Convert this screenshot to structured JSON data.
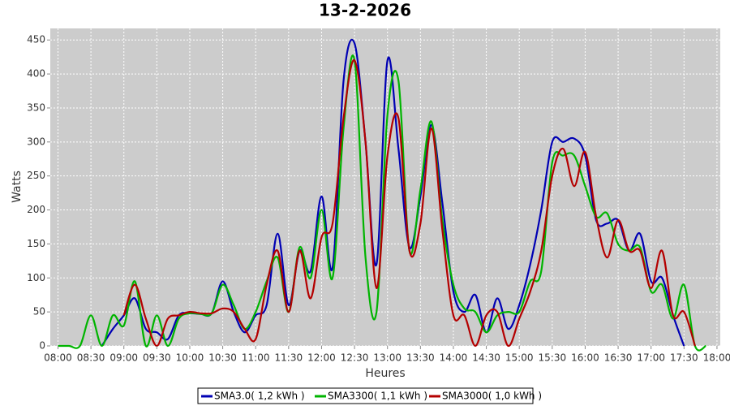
{
  "chart_data": {
    "type": "line",
    "title": "13-2-2026",
    "x_label": "Heures",
    "y_label": "Watts",
    "x": [
      "08:00",
      "08:10",
      "08:20",
      "08:30",
      "08:40",
      "08:50",
      "09:00",
      "09:10",
      "09:20",
      "09:30",
      "09:40",
      "09:50",
      "10:00",
      "10:10",
      "10:20",
      "10:30",
      "10:40",
      "10:50",
      "11:00",
      "11:10",
      "11:20",
      "11:30",
      "11:40",
      "11:50",
      "12:00",
      "12:10",
      "12:20",
      "12:30",
      "12:40",
      "12:50",
      "13:00",
      "13:10",
      "13:20",
      "13:30",
      "13:40",
      "13:50",
      "14:00",
      "14:10",
      "14:20",
      "14:30",
      "14:40",
      "14:50",
      "15:00",
      "15:10",
      "15:20",
      "15:30",
      "15:40",
      "15:50",
      "16:00",
      "16:10",
      "16:20",
      "16:30",
      "16:40",
      "16:50",
      "17:00",
      "17:10",
      "17:20",
      "17:30",
      "17:40",
      "17:50"
    ],
    "series": [
      {
        "name": "SMA3.0( 1,2 kWh )",
        "color": "#0000b4",
        "values": [
          null,
          null,
          null,
          null,
          0,
          25,
          45,
          70,
          25,
          20,
          10,
          45,
          48,
          47,
          48,
          95,
          50,
          20,
          45,
          60,
          165,
          60,
          140,
          110,
          220,
          115,
          390,
          445,
          300,
          120,
          420,
          290,
          145,
          220,
          325,
          210,
          80,
          50,
          75,
          20,
          70,
          25,
          60,
          120,
          200,
          300,
          300,
          305,
          280,
          185,
          180,
          185,
          140,
          165,
          95,
          100,
          45,
          0,
          null,
          null
        ]
      },
      {
        "name": "SMA3300( 1,1 kWh )",
        "color": "#00b400",
        "values": [
          0,
          0,
          0,
          45,
          0,
          45,
          30,
          95,
          0,
          45,
          0,
          40,
          48,
          47,
          48,
          90,
          60,
          25,
          50,
          95,
          130,
          50,
          145,
          100,
          200,
          100,
          320,
          420,
          130,
          50,
          340,
          390,
          140,
          230,
          330,
          185,
          90,
          55,
          50,
          20,
          45,
          50,
          50,
          95,
          110,
          270,
          280,
          280,
          235,
          190,
          195,
          150,
          140,
          145,
          80,
          90,
          40,
          90,
          0,
          0
        ]
      },
      {
        "name": "SMA3000( 1,0 kWh )",
        "color": "#b40000",
        "values": [
          null,
          null,
          null,
          null,
          null,
          null,
          45,
          90,
          40,
          0,
          40,
          45,
          50,
          48,
          48,
          55,
          50,
          25,
          10,
          90,
          140,
          50,
          140,
          70,
          160,
          180,
          335,
          420,
          300,
          85,
          280,
          335,
          140,
          180,
          320,
          170,
          45,
          45,
          0,
          45,
          50,
          0,
          40,
          80,
          140,
          250,
          290,
          235,
          285,
          190,
          130,
          185,
          140,
          140,
          85,
          140,
          45,
          50,
          0,
          null
        ]
      }
    ],
    "xlim": [
      "07:53",
      "18:03"
    ],
    "xticks": [
      "08:00",
      "08:30",
      "09:00",
      "09:30",
      "10:00",
      "10:30",
      "11:00",
      "11:30",
      "12:00",
      "12:30",
      "13:00",
      "13:30",
      "14:00",
      "14:30",
      "15:00",
      "15:30",
      "16:00",
      "16:30",
      "17:00",
      "17:30",
      "18:00"
    ],
    "ylim": [
      0,
      467
    ],
    "yticks": [
      0,
      50,
      100,
      150,
      200,
      250,
      300,
      350,
      400,
      450
    ],
    "grid": true,
    "legend": "bottom"
  }
}
